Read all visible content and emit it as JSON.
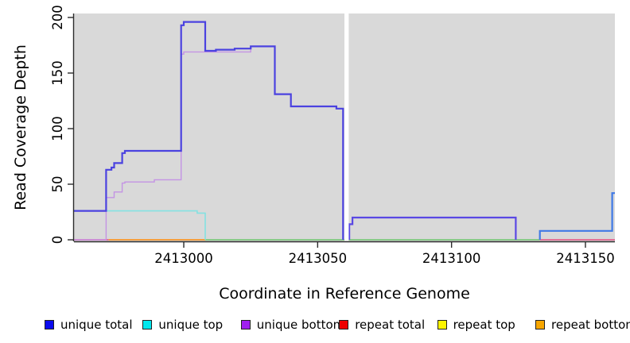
{
  "chart_data": {
    "type": "line",
    "subtype": "step-coverage",
    "title": "",
    "xlabel": "Coordinate in Reference Genome",
    "ylabel": "Read Coverage Depth",
    "xlim": [
      2412959,
      2413161
    ],
    "ylim": [
      0,
      200
    ],
    "x_ticks": [
      2413000,
      2413050,
      2413100,
      2413150
    ],
    "y_ticks": [
      0,
      50,
      100,
      150,
      200
    ],
    "grid": false,
    "panel_background": "#d9d9d9",
    "gap_region": {
      "x0": 2413060.0,
      "x1": 2413061.6,
      "color": "#ffffff"
    },
    "series": [
      {
        "name": "repeat total (left segment)",
        "legend": "repeat total",
        "color": "#e2638f",
        "width": 1.8,
        "points": [
          [
            2412959,
            0
          ],
          [
            2412972,
            0
          ]
        ]
      },
      {
        "name": "repeat bottom",
        "legend": "repeat bottom",
        "color": "#f49e3e",
        "width": 2,
        "points": [
          [
            2412972,
            0
          ],
          [
            2413008,
            0
          ]
        ]
      },
      {
        "name": "repeat top / unique top overlap",
        "legend": "repeat top",
        "color": "#7dc87d",
        "width": 1.8,
        "points": [
          [
            2413008,
            0
          ],
          [
            2413133,
            0
          ]
        ]
      },
      {
        "name": "repeat total (right segment)",
        "legend": "repeat total",
        "color": "#e2638f",
        "width": 1.8,
        "points": [
          [
            2413133,
            0
          ],
          [
            2413161,
            0
          ]
        ]
      },
      {
        "name": "unique top",
        "legend": "unique top",
        "color": "#84e2e2",
        "width": 1.6,
        "points": [
          [
            2412959,
            26
          ],
          [
            2413005,
            24
          ],
          [
            2413008,
            0
          ]
        ]
      },
      {
        "name": "unique bottom",
        "legend": "unique bottom",
        "color": "#c493e4",
        "width": 1.4,
        "points": [
          [
            2412959,
            0
          ],
          [
            2412971,
            38
          ],
          [
            2412974,
            43
          ],
          [
            2412977,
            51
          ],
          [
            2412978,
            52
          ],
          [
            2412989,
            54
          ],
          [
            2412999,
            167
          ],
          [
            2413000,
            169
          ],
          [
            2413025,
            174
          ]
        ]
      },
      {
        "name": "unique total (segment a)",
        "legend": "unique total",
        "color": "#4b42e0",
        "width": 2.2,
        "points": [
          [
            2412959,
            26
          ],
          [
            2412971,
            63
          ],
          [
            2412973,
            65
          ],
          [
            2412974,
            69
          ],
          [
            2412977,
            78
          ],
          [
            2412978,
            80
          ],
          [
            2412999,
            193
          ],
          [
            2413000,
            196
          ],
          [
            2413008,
            170
          ],
          [
            2413012,
            171
          ],
          [
            2413019,
            172
          ],
          [
            2413025,
            174
          ],
          [
            2413034,
            131
          ],
          [
            2413040,
            120
          ],
          [
            2413057,
            118
          ],
          [
            2413059.5,
            0
          ]
        ]
      },
      {
        "name": "unique total (segment b)",
        "legend": "unique total",
        "color": "#5a48e4",
        "width": 2.2,
        "points": [
          [
            2413061.8,
            0
          ],
          [
            2413061.8,
            14
          ],
          [
            2413063,
            20
          ],
          [
            2413124,
            0
          ]
        ]
      },
      {
        "name": "unique total (segment c)",
        "legend": "unique total",
        "color": "#3f79e6",
        "width": 2.2,
        "points": [
          [
            2413133,
            0
          ],
          [
            2413133,
            8
          ],
          [
            2413160,
            42
          ],
          [
            2413161,
            42
          ]
        ]
      }
    ],
    "legend": [
      {
        "label": "unique total",
        "color": "#0b0bee"
      },
      {
        "label": "unique top",
        "color": "#00e8ee"
      },
      {
        "label": "unique bottom",
        "color": "#a020f0"
      },
      {
        "label": "repeat total",
        "color": "#ee0000"
      },
      {
        "label": "repeat top",
        "color": "#fdf400"
      },
      {
        "label": "repeat bottom",
        "color": "#f7a600"
      }
    ],
    "legend_position": "bottom"
  },
  "axis_text": {
    "x_title": "Coordinate in Reference Genome",
    "y_title": "Read Coverage Depth",
    "x_tick_labels": [
      "2413000",
      "2413050",
      "2413100",
      "2413150"
    ],
    "y_tick_labels": [
      "0",
      "50",
      "100",
      "150",
      "200"
    ]
  }
}
